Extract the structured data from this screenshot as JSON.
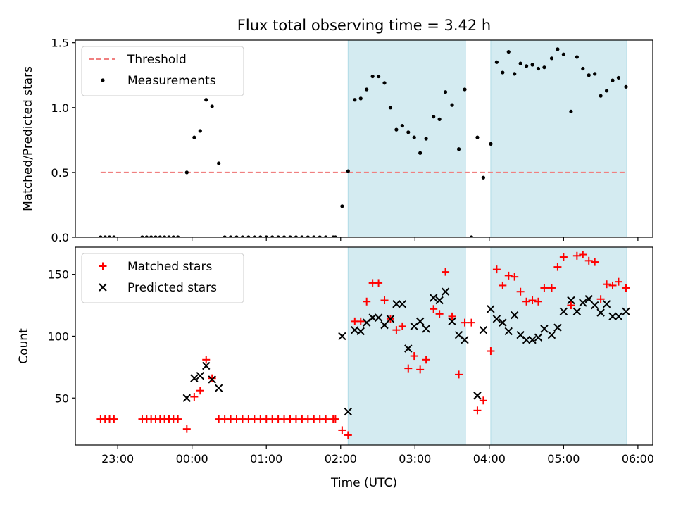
{
  "figure": {
    "title": "Flux total observing time = 3.42 h",
    "xlabel": "Time (UTC)",
    "x_ticks": [
      "23:00",
      "00:00",
      "01:00",
      "02:00",
      "03:00",
      "04:00",
      "05:00",
      "06:00"
    ],
    "x_tick_hours": [
      -1,
      0,
      1,
      2,
      3,
      4,
      5,
      6
    ],
    "x_range": [
      -1.57,
      6.2
    ],
    "shaded_intervals": [
      [
        2.1,
        3.68
      ],
      [
        4.02,
        5.85
      ]
    ],
    "shade_color": "#d4ebf1"
  },
  "chart_data": [
    {
      "type": "scatter",
      "ylabel": "Matched/Predicted stars",
      "ylim": [
        0,
        1.52
      ],
      "y_ticks": [
        0.0,
        0.5,
        1.0,
        1.5
      ],
      "y_tick_labels": [
        "0.0",
        "0.5",
        "1.0",
        "1.5"
      ],
      "legend_position": "top-left",
      "threshold": {
        "name": "Threshold",
        "y": 0.5,
        "x_start": -1.23,
        "x_end": 5.85,
        "color": "#f08080"
      },
      "series": [
        {
          "name": "Measurements",
          "color": "#000000",
          "points": [
            [
              -1.23,
              0.0
            ],
            [
              -1.17,
              0.0
            ],
            [
              -1.11,
              0.0
            ],
            [
              -1.05,
              0.0
            ],
            [
              -0.67,
              0.0
            ],
            [
              -0.61,
              0.0
            ],
            [
              -0.55,
              0.0
            ],
            [
              -0.49,
              0.0
            ],
            [
              -0.43,
              0.0
            ],
            [
              -0.37,
              0.0
            ],
            [
              -0.31,
              0.0
            ],
            [
              -0.25,
              0.0
            ],
            [
              -0.19,
              0.0
            ],
            [
              -0.07,
              0.5
            ],
            [
              0.03,
              0.77
            ],
            [
              0.11,
              0.82
            ],
            [
              0.19,
              1.06
            ],
            [
              0.27,
              1.01
            ],
            [
              0.36,
              0.57
            ],
            [
              0.44,
              0.0
            ],
            [
              0.52,
              0.0
            ],
            [
              0.6,
              0.0
            ],
            [
              0.68,
              0.0
            ],
            [
              0.76,
              0.0
            ],
            [
              0.84,
              0.0
            ],
            [
              0.92,
              0.0
            ],
            [
              1.0,
              0.0
            ],
            [
              1.08,
              0.0
            ],
            [
              1.16,
              0.0
            ],
            [
              1.24,
              0.0
            ],
            [
              1.32,
              0.0
            ],
            [
              1.4,
              0.0
            ],
            [
              1.48,
              0.0
            ],
            [
              1.56,
              0.0
            ],
            [
              1.64,
              0.0
            ],
            [
              1.72,
              0.0
            ],
            [
              1.8,
              0.0
            ],
            [
              1.9,
              0.0
            ],
            [
              1.93,
              0.0
            ],
            [
              2.02,
              0.24
            ],
            [
              2.1,
              0.51
            ],
            [
              2.19,
              1.06
            ],
            [
              2.27,
              1.07
            ],
            [
              2.35,
              1.14
            ],
            [
              2.43,
              1.24
            ],
            [
              2.51,
              1.24
            ],
            [
              2.59,
              1.19
            ],
            [
              2.67,
              1.0
            ],
            [
              2.75,
              0.83
            ],
            [
              2.83,
              0.86
            ],
            [
              2.91,
              0.81
            ],
            [
              2.99,
              0.77
            ],
            [
              3.07,
              0.65
            ],
            [
              3.15,
              0.76
            ],
            [
              3.25,
              0.93
            ],
            [
              3.33,
              0.91
            ],
            [
              3.41,
              1.12
            ],
            [
              3.5,
              1.02
            ],
            [
              3.59,
              0.68
            ],
            [
              3.67,
              1.14
            ],
            [
              3.76,
              0.0
            ],
            [
              3.84,
              0.77
            ],
            [
              3.92,
              0.46
            ],
            [
              4.02,
              0.72
            ],
            [
              4.1,
              1.35
            ],
            [
              4.18,
              1.27
            ],
            [
              4.26,
              1.43
            ],
            [
              4.34,
              1.26
            ],
            [
              4.42,
              1.34
            ],
            [
              4.5,
              1.32
            ],
            [
              4.58,
              1.33
            ],
            [
              4.66,
              1.3
            ],
            [
              4.74,
              1.31
            ],
            [
              4.84,
              1.38
            ],
            [
              4.92,
              1.45
            ],
            [
              5.0,
              1.41
            ],
            [
              5.1,
              0.97
            ],
            [
              5.18,
              1.39
            ],
            [
              5.26,
              1.3
            ],
            [
              5.34,
              1.25
            ],
            [
              5.42,
              1.26
            ],
            [
              5.5,
              1.09
            ],
            [
              5.58,
              1.13
            ],
            [
              5.66,
              1.21
            ],
            [
              5.74,
              1.23
            ],
            [
              5.84,
              1.16
            ]
          ]
        }
      ]
    },
    {
      "type": "scatter",
      "ylabel": "Count",
      "ylim": [
        12,
        172
      ],
      "y_ticks": [
        50,
        100,
        150
      ],
      "y_tick_labels": [
        "50",
        "100",
        "150"
      ],
      "legend_position": "top-left",
      "series": [
        {
          "name": "Matched stars",
          "marker": "plus",
          "color": "#ff0000",
          "points": [
            [
              -1.23,
              33
            ],
            [
              -1.17,
              33
            ],
            [
              -1.11,
              33
            ],
            [
              -1.05,
              33
            ],
            [
              -0.67,
              33
            ],
            [
              -0.61,
              33
            ],
            [
              -0.55,
              33
            ],
            [
              -0.49,
              33
            ],
            [
              -0.43,
              33
            ],
            [
              -0.37,
              33
            ],
            [
              -0.31,
              33
            ],
            [
              -0.25,
              33
            ],
            [
              -0.19,
              33
            ],
            [
              -0.07,
              25
            ],
            [
              0.03,
              51
            ],
            [
              0.11,
              56
            ],
            [
              0.19,
              81
            ],
            [
              0.27,
              66
            ],
            [
              0.36,
              33
            ],
            [
              0.44,
              33
            ],
            [
              0.52,
              33
            ],
            [
              0.6,
              33
            ],
            [
              0.68,
              33
            ],
            [
              0.76,
              33
            ],
            [
              0.84,
              33
            ],
            [
              0.92,
              33
            ],
            [
              1.0,
              33
            ],
            [
              1.08,
              33
            ],
            [
              1.16,
              33
            ],
            [
              1.24,
              33
            ],
            [
              1.32,
              33
            ],
            [
              1.4,
              33
            ],
            [
              1.48,
              33
            ],
            [
              1.56,
              33
            ],
            [
              1.64,
              33
            ],
            [
              1.72,
              33
            ],
            [
              1.8,
              33
            ],
            [
              1.9,
              33
            ],
            [
              1.93,
              33
            ],
            [
              2.02,
              24
            ],
            [
              2.1,
              20
            ],
            [
              2.19,
              112
            ],
            [
              2.27,
              112
            ],
            [
              2.35,
              128
            ],
            [
              2.43,
              143
            ],
            [
              2.51,
              143
            ],
            [
              2.59,
              129
            ],
            [
              2.67,
              114
            ],
            [
              2.75,
              105
            ],
            [
              2.83,
              108
            ],
            [
              2.91,
              74
            ],
            [
              2.99,
              84
            ],
            [
              3.07,
              73
            ],
            [
              3.15,
              81
            ],
            [
              3.25,
              122
            ],
            [
              3.33,
              118
            ],
            [
              3.41,
              152
            ],
            [
              3.5,
              116
            ],
            [
              3.59,
              69
            ],
            [
              3.67,
              111
            ],
            [
              3.76,
              111
            ],
            [
              3.84,
              40
            ],
            [
              3.92,
              48
            ],
            [
              4.02,
              88
            ],
            [
              4.1,
              154
            ],
            [
              4.18,
              141
            ],
            [
              4.26,
              149
            ],
            [
              4.34,
              148
            ],
            [
              4.42,
              136
            ],
            [
              4.5,
              128
            ],
            [
              4.58,
              129
            ],
            [
              4.66,
              128
            ],
            [
              4.74,
              139
            ],
            [
              4.84,
              139
            ],
            [
              4.92,
              156
            ],
            [
              5.0,
              164
            ],
            [
              5.1,
              125
            ],
            [
              5.18,
              165
            ],
            [
              5.26,
              166
            ],
            [
              5.34,
              161
            ],
            [
              5.42,
              160
            ],
            [
              5.5,
              130
            ],
            [
              5.58,
              142
            ],
            [
              5.66,
              141
            ],
            [
              5.74,
              144
            ],
            [
              5.84,
              139
            ]
          ]
        },
        {
          "name": "Predicted stars",
          "marker": "x",
          "color": "#000000",
          "points": [
            [
              -0.07,
              50
            ],
            [
              0.03,
              66
            ],
            [
              0.11,
              68
            ],
            [
              0.19,
              76
            ],
            [
              0.27,
              65
            ],
            [
              0.36,
              58
            ],
            [
              2.02,
              100
            ],
            [
              2.1,
              39
            ],
            [
              2.19,
              105
            ],
            [
              2.27,
              104
            ],
            [
              2.35,
              111
            ],
            [
              2.43,
              115
            ],
            [
              2.51,
              115
            ],
            [
              2.59,
              109
            ],
            [
              2.67,
              114
            ],
            [
              2.75,
              126
            ],
            [
              2.83,
              126
            ],
            [
              2.91,
              90
            ],
            [
              2.99,
              108
            ],
            [
              3.07,
              112
            ],
            [
              3.15,
              106
            ],
            [
              3.25,
              131
            ],
            [
              3.33,
              129
            ],
            [
              3.41,
              136
            ],
            [
              3.5,
              112
            ],
            [
              3.59,
              101
            ],
            [
              3.67,
              97
            ],
            [
              3.84,
              52
            ],
            [
              3.92,
              105
            ],
            [
              4.02,
              122
            ],
            [
              4.1,
              114
            ],
            [
              4.18,
              111
            ],
            [
              4.26,
              104
            ],
            [
              4.34,
              117
            ],
            [
              4.42,
              101
            ],
            [
              4.5,
              97
            ],
            [
              4.58,
              97
            ],
            [
              4.66,
              99
            ],
            [
              4.74,
              106
            ],
            [
              4.84,
              101
            ],
            [
              4.92,
              107
            ],
            [
              5.0,
              120
            ],
            [
              5.1,
              129
            ],
            [
              5.18,
              120
            ],
            [
              5.26,
              127
            ],
            [
              5.34,
              130
            ],
            [
              5.42,
              125
            ],
            [
              5.5,
              119
            ],
            [
              5.58,
              126
            ],
            [
              5.66,
              116
            ],
            [
              5.74,
              116
            ],
            [
              5.84,
              120
            ]
          ]
        }
      ]
    }
  ]
}
